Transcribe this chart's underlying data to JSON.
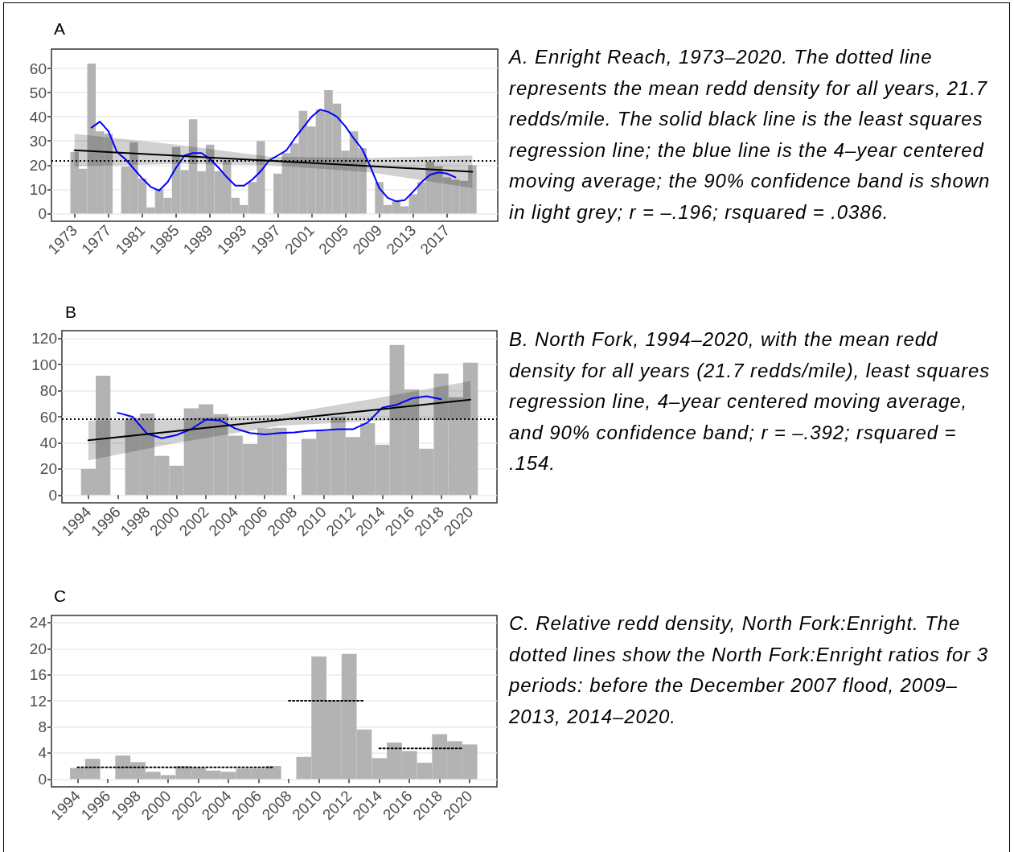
{
  "chart_data": [
    {
      "type": "bar",
      "title": "A",
      "xlim": [
        1970.27,
        2023.0
      ],
      "xticks": [
        1973,
        1977,
        1981,
        1985,
        1989,
        1993,
        1997,
        2001,
        2005,
        2009,
        2013,
        2017
      ],
      "ylim": [
        -3.2,
        68
      ],
      "yticks": [
        0,
        10,
        20,
        30,
        40,
        50,
        60
      ],
      "grid": "y",
      "series": [
        {
          "color": "#b3b3b3",
          "x": [
            1973,
            1974,
            1975,
            1976,
            1977,
            1979,
            1980,
            1981,
            1982,
            1983,
            1984,
            1985,
            1986,
            1987,
            1988,
            1989,
            1990,
            1991,
            1992,
            1993,
            1994,
            1995,
            1997,
            1998,
            1999,
            2000,
            2001,
            2002,
            2003,
            2004,
            2005,
            2006,
            2007,
            2009,
            2010,
            2011,
            2012,
            2013,
            2014,
            2015,
            2016,
            2017,
            2018,
            2019,
            2020
          ],
          "values": [
            25.5,
            18.5,
            62,
            34,
            33,
            19.5,
            29.5,
            14.5,
            2.5,
            10,
            6.5,
            27.5,
            18,
            39,
            17.5,
            28.5,
            17.5,
            22,
            6.5,
            3.5,
            13,
            30,
            16.5,
            25,
            29,
            42.5,
            36,
            43,
            51,
            45.5,
            26,
            34,
            27,
            13,
            3.5,
            5,
            3,
            8,
            13,
            21.5,
            19.5,
            15,
            14,
            13.5,
            20
          ]
        },
        {
          "type": "line",
          "color": "#0000ff",
          "x": [
            1975,
            1976,
            1977,
            1978,
            1979,
            1980,
            1981,
            1982,
            1983,
            1984,
            1985,
            1986,
            1987,
            1988,
            1989,
            1990,
            1991,
            1992,
            1993,
            1994,
            1995,
            1996,
            1997,
            1998,
            1999,
            2000,
            2001,
            2002,
            2003,
            2004,
            2005,
            2006,
            2007,
            2008,
            2009,
            2010,
            2011,
            2012,
            2013,
            2014,
            2015,
            2016,
            2017,
            2018
          ],
          "values": [
            35.5,
            38,
            34,
            25.5,
            22.5,
            18.5,
            14.5,
            11,
            9.5,
            13,
            19,
            24,
            25,
            25,
            22.5,
            19,
            15,
            11.5,
            11.5,
            14,
            17.5,
            22,
            24,
            26,
            31,
            35.5,
            40,
            43,
            42,
            40,
            36,
            31,
            26.5,
            19,
            10.5,
            6.5,
            5,
            5.5,
            9,
            13,
            16,
            17,
            16.5,
            15
          ]
        },
        {
          "type": "line",
          "color": "#000000",
          "x": [
            1973,
            1985,
            1996,
            2008,
            2020
          ],
          "values": [
            26.2,
            23.9,
            21.8,
            19.6,
            17.3
          ],
          "lower": [
            19.5,
            20.5,
            20,
            17,
            10.5
          ],
          "upper": [
            33,
            28.5,
            23.5,
            23,
            24
          ]
        }
      ],
      "ref_lines": [
        {
          "axis": "y",
          "value": 21.7,
          "color": "#000000",
          "line_style": "dotted"
        }
      ],
      "annotations": [
        "A. Enright Reach, 1973–2020. The dotted line represents the mean redd density for all years, 21.7 redds/mile. The solid black line is the least squares regression line; the blue line is the 4–year centered moving average; the 90% confidence band is shown in light grey; r = –.196; rsquared = .0386."
      ]
    },
    {
      "type": "bar",
      "title": "B",
      "xlim": [
        1992.2,
        2021.8
      ],
      "xticks": [
        1994,
        1996,
        1998,
        2000,
        2002,
        2004,
        2006,
        2008,
        2010,
        2012,
        2014,
        2016,
        2018,
        2020
      ],
      "ylim": [
        -6,
        126
      ],
      "yticks": [
        0,
        20,
        40,
        60,
        80,
        100,
        120
      ],
      "grid": "y",
      "series": [
        {
          "color": "#b3b3b3",
          "x": [
            1994,
            1995,
            1997,
            1998,
            1999,
            2000,
            2001,
            2002,
            2003,
            2004,
            2005,
            2006,
            2007,
            2009,
            2010,
            2011,
            2012,
            2013,
            2014,
            2015,
            2016,
            2017,
            2018,
            2019,
            2020
          ],
          "values": [
            20,
            91.5,
            59,
            62.5,
            30,
            22.5,
            66.5,
            69.5,
            62,
            45.5,
            39,
            51,
            51.5,
            43,
            49,
            60,
            44.5,
            55,
            38.5,
            115,
            81,
            35.5,
            93,
            75,
            101.5
          ]
        },
        {
          "type": "line",
          "color": "#0000ff",
          "x": [
            1996,
            1997,
            1998,
            1999,
            2000,
            2001,
            2002,
            2003,
            2004,
            2005,
            2006,
            2007,
            2008,
            2009,
            2010,
            2011,
            2012,
            2013,
            2014,
            2015,
            2016,
            2017,
            2018
          ],
          "values": [
            63,
            60,
            47,
            43.5,
            46,
            50.5,
            57.8,
            57,
            51,
            47.5,
            46.4,
            47.5,
            48,
            49.2,
            49.7,
            50.4,
            50.4,
            55.6,
            67,
            69.3,
            74,
            75.7,
            73.4
          ]
        },
        {
          "type": "line",
          "color": "#000000",
          "x": [
            1994,
            2000,
            2007,
            2014,
            2020
          ],
          "values": [
            41.9,
            49.1,
            57.5,
            65.9,
            73.1
          ],
          "lower": [
            26.5,
            40,
            53,
            57,
            58
          ],
          "upper": [
            57,
            58.5,
            61.5,
            75,
            87.5
          ]
        }
      ],
      "ref_lines": [
        {
          "axis": "y",
          "value": 58,
          "color": "#000000",
          "line_style": "dotted"
        }
      ],
      "annotations": [
        "B. North Fork, 1994–2020, with the mean redd density for all years (21.7 redds/mile), least squares regression line, 4–year centered moving average, and 90% confidence band; r = –.392; rsquared = .154."
      ]
    },
    {
      "type": "bar",
      "title": "C",
      "xlim": [
        1992.27,
        2021.8
      ],
      "xticks": [
        1994,
        1996,
        1998,
        2000,
        2002,
        2004,
        2006,
        2008,
        2010,
        2012,
        2014,
        2016,
        2018,
        2020
      ],
      "ylim": [
        -1.2,
        25.1
      ],
      "yticks": [
        0,
        4,
        8,
        12,
        16,
        20,
        24
      ],
      "grid": "y",
      "series": [
        {
          "color": "#b3b3b3",
          "x": [
            1994,
            1995,
            1997,
            1998,
            1999,
            2000,
            2001,
            2002,
            2003,
            2004,
            2005,
            2006,
            2007,
            2009,
            2010,
            2011,
            2012,
            2013,
            2014,
            2015,
            2016,
            2017,
            2018,
            2019,
            2020
          ],
          "values": [
            1.7,
            3.1,
            3.6,
            2.6,
            1.1,
            0.6,
            2.0,
            1.7,
            1.3,
            1.1,
            1.6,
            1.6,
            2.0,
            3.4,
            18.8,
            12,
            19.2,
            7.6,
            3.2,
            5.6,
            4.3,
            2.5,
            6.9,
            5.8,
            5.3
          ]
        },
        {
          "type": "line",
          "color": "#000000",
          "line_style": "dotted",
          "x": [
            1994,
            2007
          ],
          "values": [
            1.8,
            1.8
          ]
        },
        {
          "type": "line",
          "color": "#000000",
          "line_style": "dotted",
          "x": [
            2008,
            2013
          ],
          "values": [
            12,
            12
          ]
        },
        {
          "type": "line",
          "color": "#000000",
          "line_style": "dotted",
          "x": [
            2014,
            2019.5
          ],
          "values": [
            4.7,
            4.7
          ]
        }
      ],
      "annotations": [
        "C. Relative redd density, North Fork:Enright. The dotted lines show the North Fork:Enright ratios for 3 periods: before the December 2007 flood, 2009–2013, 2014–2020."
      ]
    }
  ]
}
